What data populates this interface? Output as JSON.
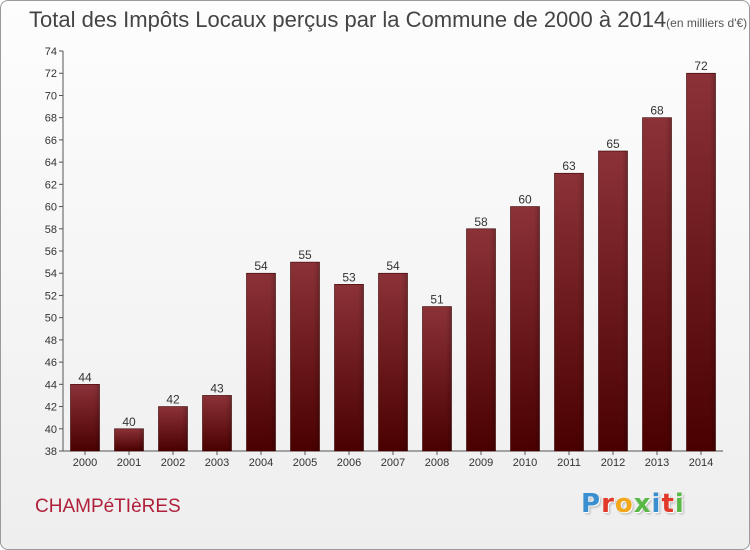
{
  "title": {
    "main": "Total des Impôts Locaux perçus par la Commune de 2000 à 2014",
    "unit": "(en milliers d'€)"
  },
  "commune": "CHAMPéTIèRES",
  "logo": {
    "text": "Proxiti",
    "colors": [
      "#3a8fd1",
      "#e23a2a",
      "#f2a71b",
      "#58b947",
      "#3a8fd1",
      "#e23a2a",
      "#58b947"
    ]
  },
  "colors": {
    "bar_top": "#8b3238",
    "bar_bottom": "#4a0000",
    "commune": "#b0203a"
  },
  "chart_data": {
    "type": "bar",
    "title": "Total des Impôts Locaux perçus par la Commune de 2000 à 2014",
    "unit": "(en milliers d'€)",
    "categories": [
      "2000",
      "2001",
      "2002",
      "2003",
      "2004",
      "2005",
      "2006",
      "2007",
      "2008",
      "2009",
      "2010",
      "2011",
      "2012",
      "2013",
      "2014"
    ],
    "values": [
      44,
      40,
      42,
      43,
      54,
      55,
      53,
      54,
      51,
      58,
      60,
      63,
      65,
      68,
      72
    ],
    "ylim": [
      38,
      74
    ],
    "yticks": [
      38,
      40,
      42,
      44,
      46,
      48,
      50,
      52,
      54,
      56,
      58,
      60,
      62,
      64,
      66,
      68,
      70,
      72,
      74
    ],
    "xlabel": "",
    "ylabel": "",
    "grid": false
  }
}
